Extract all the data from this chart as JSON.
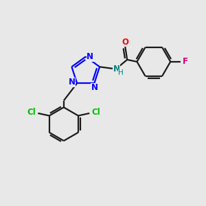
{
  "bg_color": "#e8e8e8",
  "bond_color": "#1a1a1a",
  "N_color": "#0000ff",
  "O_color": "#ff0000",
  "NH_color": "#008080",
  "Cl_color": "#00bb00",
  "F_color": "#cc0077",
  "lw": 1.6,
  "figsize": [
    3.0,
    3.0
  ],
  "dpi": 100,
  "xlim": [
    0,
    10
  ],
  "ylim": [
    0,
    10
  ]
}
